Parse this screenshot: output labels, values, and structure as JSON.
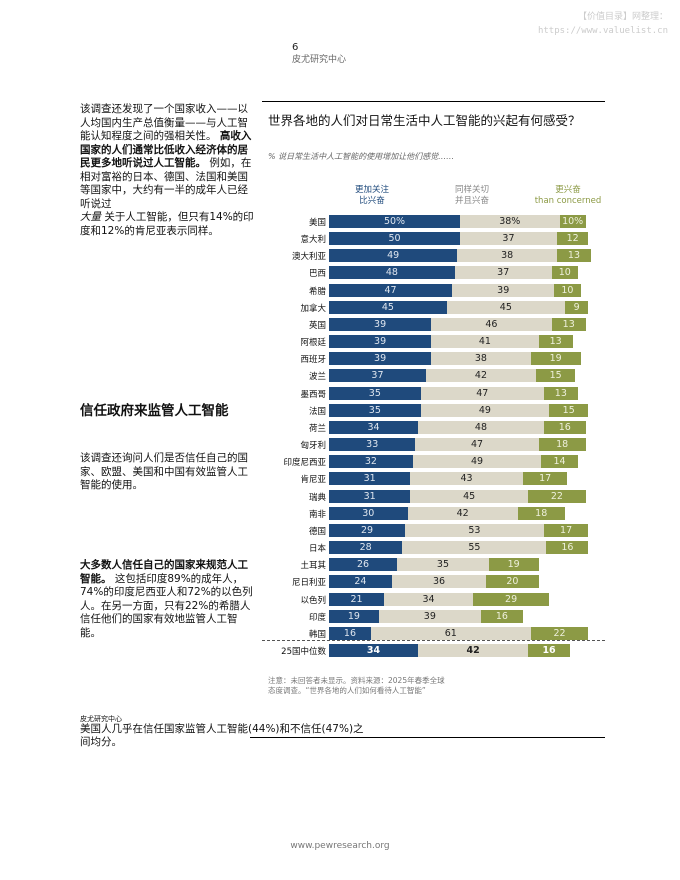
{
  "watermark": {
    "line1": "【价值目录】网整理：",
    "line2": "https://www.valuelist.cn"
  },
  "header": {
    "page_number": "6",
    "org": "皮尤研究中心"
  },
  "left": {
    "para1_a": "该调查还发现了一个国家收入——以人均国内生产总值衡量——与人工智能认知程度之间的强相关性。",
    "para1_bold": "高收入国家的人们通常比低收入经济体的居民更多地听说过人工智能。",
    "para1_b": "例如，在相对富裕的日本、德国、法国和美国等国家中，大约有一半的成年人已经听说过",
    "para1_italic": "大量",
    "para1_c": "关于人工智能，但只有14%的印度和12%的肯尼亚表示同样。",
    "heading": "信任政府来监管人工智能",
    "para2": "该调查还询问人们是否信任自己的国家、欧盟、美国和中国有效监管人工智能的使用。",
    "para3_bold": "大多数人信任自己的国家来规范人工智能。",
    "para3": "这包括印度89%的成年人，74%的印度尼西亚人和72%的以色列人。在另一方面，只有22%的希腊人信任他们的国家有效地监管人工智能。"
  },
  "chart_data": {
    "type": "bar",
    "stacked": true,
    "orientation": "horizontal",
    "title": "世界各地的人们对日常生活中人工智能的兴起有何感受？",
    "subtitle": "% 说日常生活中人工智能的使用增加让他们感觉……",
    "legend": [
      {
        "name_line1": "更加关注",
        "name_line2": "比兴奋",
        "color": "#1f4a7c"
      },
      {
        "name_line1": "同样关切",
        "name_line2": "并且兴奋",
        "color": "#dcd8c9"
      },
      {
        "name_line1": "更兴奋",
        "name_line2": "than concerned",
        "color": "#8c9a45"
      }
    ],
    "categories": [
      "美国",
      "意大利",
      "澳大利亚",
      "巴西",
      "希腊",
      "加拿大",
      "英国",
      "阿根廷",
      "西班牙",
      "波兰",
      "墨西哥",
      "法国",
      "荷兰",
      "匈牙利",
      "印度尼西亚",
      "肯尼亚",
      "瑞典",
      "南非",
      "德国",
      "日本",
      "土耳其",
      "尼日利亚",
      "以色列",
      "印度",
      "韩国"
    ],
    "series": [
      {
        "values": [
          50,
          50,
          49,
          48,
          47,
          45,
          39,
          39,
          39,
          37,
          35,
          35,
          34,
          33,
          32,
          31,
          31,
          30,
          29,
          28,
          26,
          24,
          21,
          19,
          16
        ]
      },
      {
        "values": [
          38,
          37,
          38,
          37,
          39,
          45,
          46,
          41,
          38,
          42,
          47,
          49,
          48,
          47,
          49,
          43,
          45,
          42,
          53,
          55,
          35,
          36,
          34,
          39,
          61
        ]
      },
      {
        "values": [
          10,
          12,
          13,
          10,
          10,
          9,
          13,
          13,
          19,
          15,
          13,
          15,
          16,
          18,
          14,
          17,
          22,
          18,
          17,
          16,
          19,
          20,
          29,
          16,
          22
        ]
      }
    ],
    "first_row_suffix": "%",
    "median": {
      "label": "25国中位数",
      "values": [
        34,
        42,
        16
      ]
    },
    "xlim": [
      0,
      100
    ],
    "note": "注意：未回答者未显示。资料来源：2025年春季全球态度调查。“世界各地的人们如何看待人工智能”"
  },
  "footer": {
    "org": "皮尤研究中心",
    "text": "美国人几乎在信任国家监管人工智能(44%)和不信任(47%)之间均分。",
    "url": "www.pewresearch.org"
  }
}
